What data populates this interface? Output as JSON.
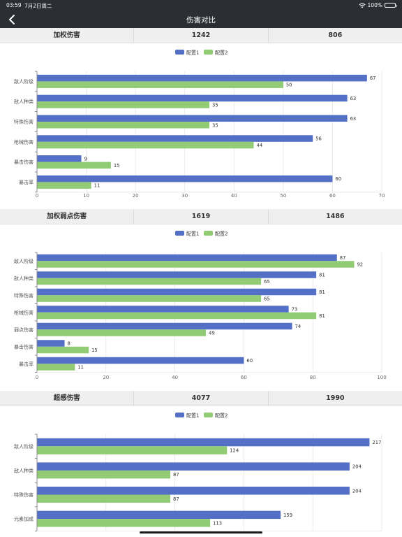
{
  "status_bar": {
    "time": "03:59",
    "date": "7月2日周二",
    "battery": "100%",
    "battery_level": 1.0
  },
  "nav": {
    "title": "伤害对比"
  },
  "sections": [
    {
      "header": [
        "加权伤害",
        "1242",
        "806"
      ]
    },
    {
      "header": [
        "加权弱点伤害",
        "1619",
        "1486"
      ]
    },
    {
      "header": [
        "超感伤害",
        "4077",
        "1990"
      ]
    }
  ],
  "colors": {
    "series1": "#5470c6",
    "series2": "#91cc75"
  },
  "chart_data": [
    {
      "type": "bar",
      "orientation": "horizontal",
      "categories": [
        "敌人阶级",
        "敌人种类",
        "特殊伤害",
        "枪械伤害",
        "暴击伤害",
        "暴击率"
      ],
      "series": [
        {
          "name": "配置1",
          "values": [
            67,
            63,
            63,
            56,
            9,
            60
          ]
        },
        {
          "name": "配置2",
          "values": [
            50,
            35,
            35,
            44,
            15,
            11
          ]
        }
      ],
      "xlim": [
        0,
        70
      ],
      "xticks": [
        0,
        10,
        20,
        30,
        40,
        50,
        60,
        70
      ],
      "legend": "top-center",
      "grid": true
    },
    {
      "type": "bar",
      "orientation": "horizontal",
      "categories": [
        "敌人阶级",
        "敌人种类",
        "特殊伤害",
        "枪械伤害",
        "弱点伤害",
        "暴击伤害",
        "暴击率"
      ],
      "series": [
        {
          "name": "配置1",
          "values": [
            87,
            81,
            81,
            73,
            74,
            8,
            60
          ]
        },
        {
          "name": "配置2",
          "values": [
            92,
            65,
            65,
            81,
            49,
            15,
            11
          ]
        }
      ],
      "xlim": [
        0,
        100
      ],
      "xticks": [
        0,
        20,
        40,
        60,
        80,
        100
      ],
      "legend": "top-center",
      "grid": true
    },
    {
      "type": "bar",
      "orientation": "horizontal",
      "categories": [
        "敌人阶级",
        "敌人种类",
        "特殊伤害",
        "元素加成"
      ],
      "series": [
        {
          "name": "配置1",
          "values": [
            217,
            204,
            204,
            159
          ]
        },
        {
          "name": "配置2",
          "values": [
            124,
            87,
            87,
            113
          ]
        }
      ],
      "xlim": [
        0,
        225
      ],
      "xticks": [],
      "legend": "top-center",
      "grid": true
    }
  ]
}
